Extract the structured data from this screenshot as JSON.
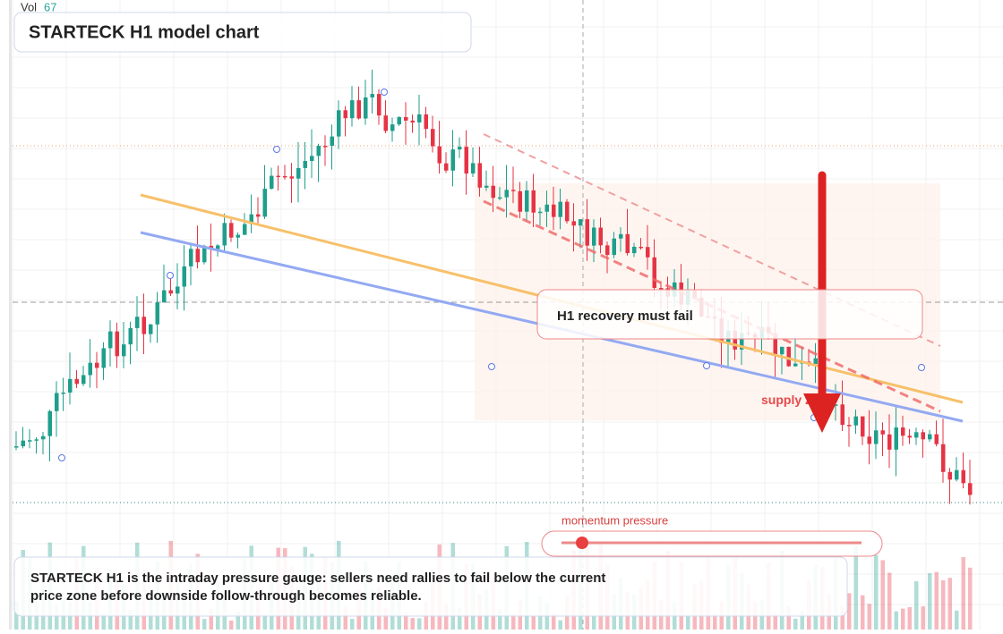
{
  "volume": {
    "label": "Vol",
    "value": 67
  },
  "title": "STARTECK H1 model chart",
  "callout": "H1 recovery must fail",
  "zone_label": "supply zone",
  "gauge": {
    "label": "momentum pressure"
  },
  "description": "STARTECK H1 is the intraday pressure gauge: sellers need rallies to fail below the current price zone before downside follow-through becomes reliable."
}
